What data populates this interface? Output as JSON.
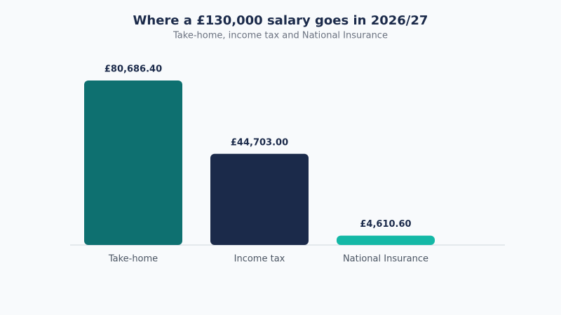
{
  "chart_data": {
    "type": "bar",
    "title": "Where a £130,000 salary goes in 2026/27",
    "subtitle": "Take-home, income tax and National Insurance",
    "categories": [
      "Take-home",
      "Income tax",
      "National Insurance"
    ],
    "values": [
      80686.4,
      44703,
      4610.6
    ],
    "value_labels": [
      "£80,686.40",
      "£44,703.00",
      "£4,610.60"
    ],
    "colors": [
      "#0e7070",
      "#1b2a4a",
      "#14b8a6"
    ]
  }
}
